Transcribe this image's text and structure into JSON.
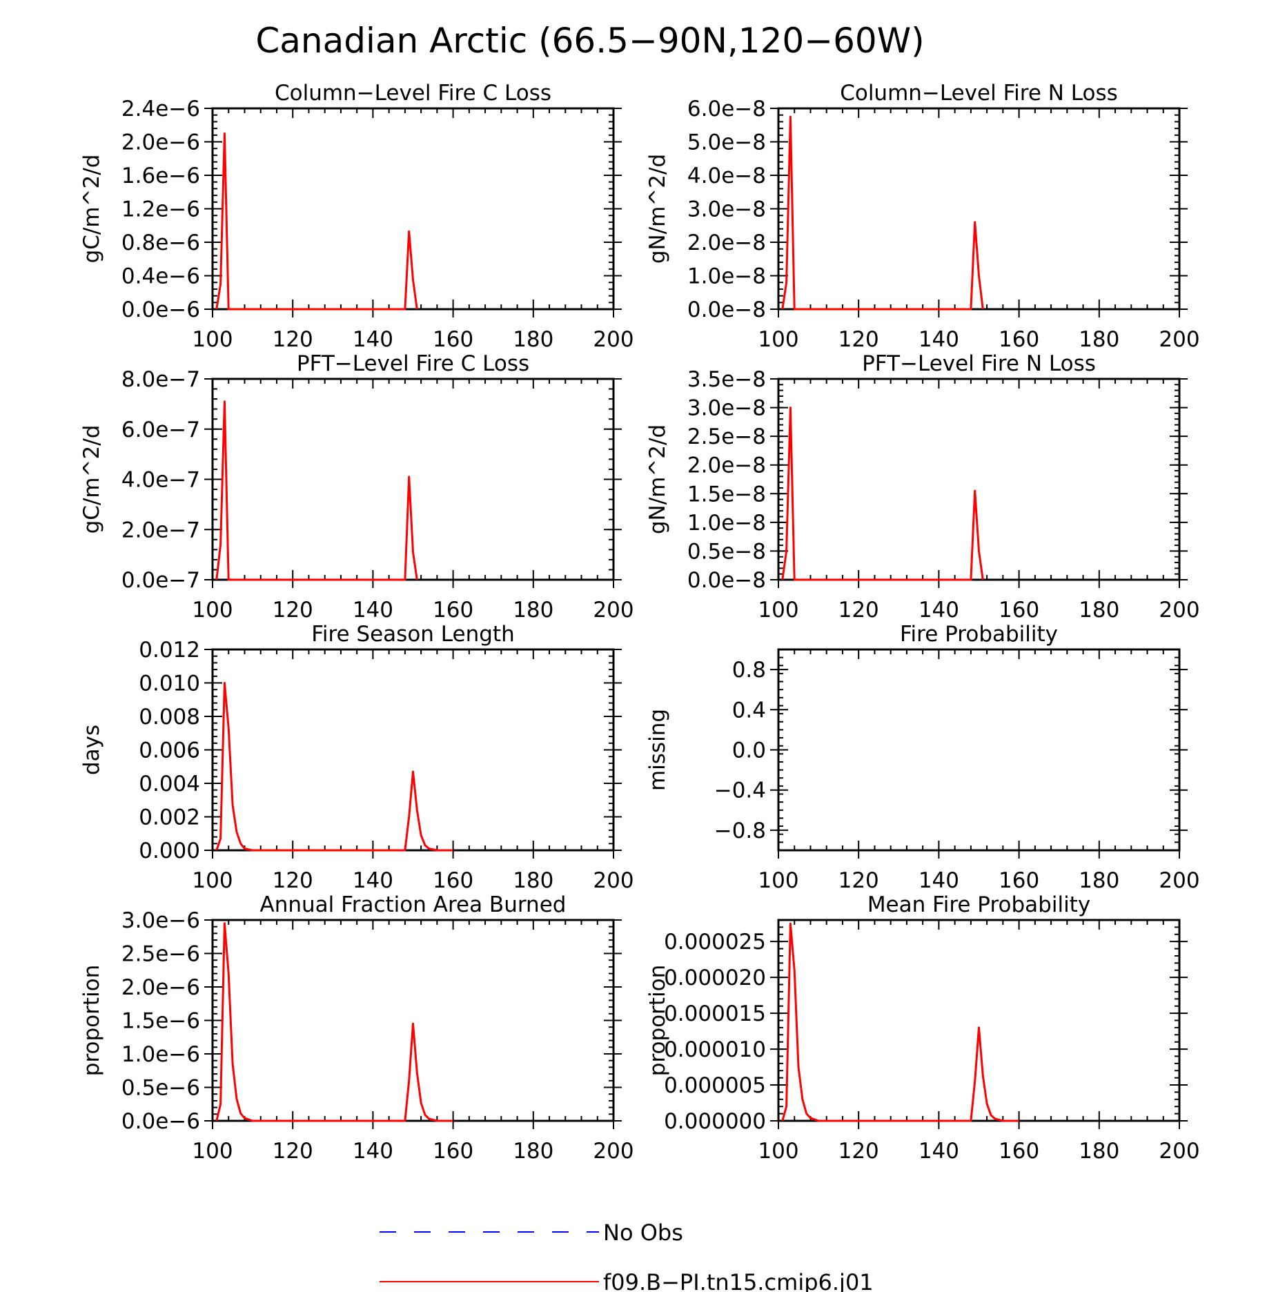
{
  "figure": {
    "title": "Canadian Arctic (66.5−90N,120−60W)",
    "colors": {
      "model": "#ff0000",
      "obs": "#0000ff",
      "axes": "#000000"
    },
    "legend": {
      "placement": "bottom-center",
      "items": [
        {
          "label": "No Obs",
          "style": "dashed",
          "color": "#0000ff"
        },
        {
          "label": "f09.B−PI.tn15.cmip6.j01",
          "style": "solid",
          "color": "#ff0000"
        }
      ]
    }
  },
  "chart_data": [
    {
      "type": "line",
      "title": "Column−Level Fire C Loss",
      "ylabel": "gC/m^2/d",
      "xlim": [
        100,
        200
      ],
      "ylim": [
        0,
        2.4e-06
      ],
      "xticks": [
        "100",
        "120",
        "140",
        "160",
        "180",
        "200"
      ],
      "yticks": [
        "0.0e−6",
        "0.4e−6",
        "0.8e−6",
        "1.2e−6",
        "1.6e−6",
        "2.0e−6",
        "2.4e−6"
      ],
      "series": [
        {
          "color": "#ff0000",
          "x": [
            101,
            102,
            103,
            104,
            148,
            149,
            150,
            151
          ],
          "y": [
            0,
            3e-07,
            2.1e-06,
            0,
            0,
            9.3e-07,
            3.5e-07,
            0
          ]
        }
      ]
    },
    {
      "type": "line",
      "title": "Column−Level Fire N Loss",
      "ylabel": "gN/m^2/d",
      "xlim": [
        100,
        200
      ],
      "ylim": [
        0,
        6e-08
      ],
      "xticks": [
        "100",
        "120",
        "140",
        "160",
        "180",
        "200"
      ],
      "yticks": [
        "0.0e−8",
        "1.0e−8",
        "2.0e−8",
        "3.0e−8",
        "4.0e−8",
        "5.0e−8",
        "6.0e−8"
      ],
      "series": [
        {
          "color": "#ff0000",
          "x": [
            101,
            102,
            103,
            104,
            148,
            149,
            150,
            151
          ],
          "y": [
            0,
            8e-09,
            5.75e-08,
            0,
            0,
            2.6e-08,
            1e-08,
            0
          ]
        }
      ]
    },
    {
      "type": "line",
      "title": "PFT−Level Fire C Loss",
      "ylabel": "gC/m^2/d",
      "xlim": [
        100,
        200
      ],
      "ylim": [
        0,
        8e-07
      ],
      "xticks": [
        "100",
        "120",
        "140",
        "160",
        "180",
        "200"
      ],
      "yticks": [
        "0.0e−7",
        "2.0e−7",
        "4.0e−7",
        "6.0e−7",
        "8.0e−7"
      ],
      "series": [
        {
          "color": "#ff0000",
          "x": [
            101,
            102,
            103,
            104,
            148,
            149,
            150,
            151
          ],
          "y": [
            0,
            1.4e-07,
            7.1e-07,
            0,
            0,
            4.1e-07,
            1.1e-07,
            0
          ]
        }
      ]
    },
    {
      "type": "line",
      "title": "PFT−Level Fire N Loss",
      "ylabel": "gN/m^2/d",
      "xlim": [
        100,
        200
      ],
      "ylim": [
        0,
        3.5e-08
      ],
      "xticks": [
        "100",
        "120",
        "140",
        "160",
        "180",
        "200"
      ],
      "yticks": [
        "0.0e−8",
        "0.5e−8",
        "1.0e−8",
        "1.5e−8",
        "2.0e−8",
        "2.5e−8",
        "3.0e−8",
        "3.5e−8"
      ],
      "series": [
        {
          "color": "#ff0000",
          "x": [
            101,
            102,
            103,
            104,
            148,
            149,
            150,
            151
          ],
          "y": [
            0,
            5e-09,
            3e-08,
            0,
            0,
            1.55e-08,
            5e-09,
            0
          ]
        }
      ]
    },
    {
      "type": "line",
      "title": "Fire Season Length",
      "ylabel": "days",
      "xlim": [
        100,
        200
      ],
      "ylim": [
        0,
        0.012
      ],
      "xticks": [
        "100",
        "120",
        "140",
        "160",
        "180",
        "200"
      ],
      "yticks": [
        "0.000",
        "0.002",
        "0.004",
        "0.006",
        "0.008",
        "0.010",
        "0.012"
      ],
      "series": [
        {
          "color": "#ff0000",
          "x": [
            101,
            102,
            103,
            104,
            105,
            106,
            107,
            108,
            110,
            112,
            148,
            149,
            150,
            151,
            152,
            153,
            154,
            156,
            160
          ],
          "y": [
            0,
            0.0007,
            0.01,
            0.0073,
            0.0027,
            0.0011,
            0.0004,
            0.0001,
            0,
            0,
            0,
            0.002,
            0.0047,
            0.0024,
            0.0009,
            0.0003,
            0.0001,
            0,
            0
          ]
        }
      ]
    },
    {
      "type": "line",
      "title": "Fire Probability",
      "ylabel": "missing",
      "xlim": [
        100,
        200
      ],
      "ylim": [
        -1.0,
        1.0
      ],
      "xticks": [
        "100",
        "120",
        "140",
        "160",
        "180",
        "200"
      ],
      "yticks": [
        "−0.8",
        "−0.4",
        "0.0",
        "0.4",
        "0.8"
      ],
      "series": []
    },
    {
      "type": "line",
      "title": "Annual Fraction Area Burned",
      "ylabel": "proportion",
      "xlim": [
        100,
        200
      ],
      "ylim": [
        0,
        3e-06
      ],
      "xticks": [
        "100",
        "120",
        "140",
        "160",
        "180",
        "200"
      ],
      "yticks": [
        "0.0e−6",
        "0.5e−6",
        "1.0e−6",
        "1.5e−6",
        "2.0e−6",
        "2.5e−6",
        "3.0e−6"
      ],
      "series": [
        {
          "color": "#ff0000",
          "x": [
            101,
            102,
            103,
            104,
            105,
            106,
            107,
            108,
            110,
            112,
            148,
            149,
            150,
            151,
            152,
            153,
            154,
            156,
            160
          ],
          "y": [
            0,
            2.5e-07,
            2.95e-06,
            2.2e-06,
            8.5e-07,
            3.3e-07,
            1.1e-07,
            4e-08,
            0,
            0,
            0,
            6e-07,
            1.45e-06,
            7.2e-07,
            2.7e-07,
            9e-08,
            3e-08,
            0,
            0
          ]
        }
      ]
    },
    {
      "type": "line",
      "title": "Mean Fire Probability",
      "ylabel": "proportion",
      "xlim": [
        100,
        200
      ],
      "ylim": [
        0,
        2.8e-05
      ],
      "xticks": [
        "100",
        "120",
        "140",
        "160",
        "180",
        "200"
      ],
      "yticks": [
        "0.000000",
        "0.000005",
        "0.000010",
        "0.000015",
        "0.000020",
        "0.000025"
      ],
      "series": [
        {
          "color": "#ff0000",
          "x": [
            101,
            102,
            103,
            104,
            105,
            106,
            107,
            108,
            110,
            112,
            148,
            149,
            150,
            151,
            152,
            153,
            154,
            156,
            160
          ],
          "y": [
            0,
            2e-06,
            2.75e-05,
            2.1e-05,
            7.5e-06,
            3e-06,
            1e-06,
            4e-07,
            0,
            0,
            0,
            5.5e-06,
            1.3e-05,
            6.3e-06,
            2.4e-06,
            8e-07,
            3e-07,
            0,
            0
          ]
        }
      ]
    }
  ]
}
